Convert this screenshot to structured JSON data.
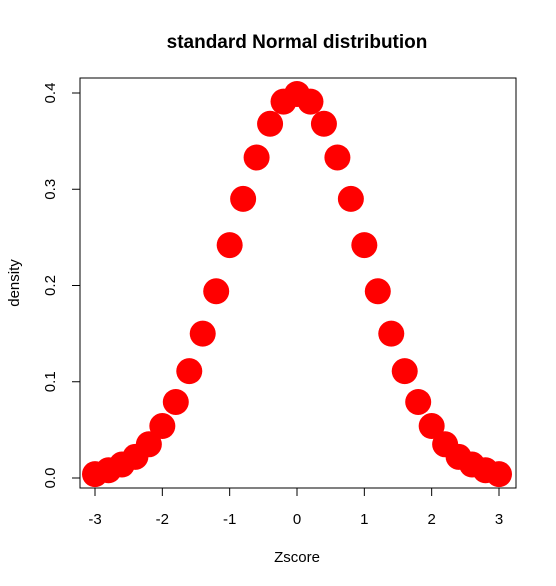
{
  "chart_data": {
    "type": "scatter",
    "title": "standard Normal distribution",
    "xlabel": "Zscore",
    "ylabel": "density",
    "xlim": [
      -3,
      3
    ],
    "ylim": [
      0,
      0.4
    ],
    "x_ticks": [
      -3,
      -2,
      -1,
      0,
      1,
      2,
      3
    ],
    "y_ticks": [
      0.0,
      0.1,
      0.2,
      0.3,
      0.4
    ],
    "x_tick_labels": [
      "-3",
      "-2",
      "-1",
      "0",
      "1",
      "2",
      "3"
    ],
    "y_tick_labels": [
      "0.0",
      "0.1",
      "0.2",
      "0.3",
      "0.4"
    ],
    "grid": false,
    "marker_color": "#ff0000",
    "series": [
      {
        "x": [
          -3.0,
          -2.8,
          -2.6,
          -2.4,
          -2.2,
          -2.0,
          -1.8,
          -1.6,
          -1.4,
          -1.2,
          -1.0,
          -0.8,
          -0.6,
          -0.4,
          -0.2,
          0.0,
          0.2,
          0.4,
          0.6,
          0.8,
          1.0,
          1.2,
          1.4,
          1.6,
          1.8,
          2.0,
          2.2,
          2.4,
          2.6,
          2.8,
          3.0
        ],
        "y": [
          0.004,
          0.008,
          0.014,
          0.022,
          0.035,
          0.054,
          0.079,
          0.111,
          0.15,
          0.194,
          0.242,
          0.29,
          0.333,
          0.368,
          0.391,
          0.399,
          0.391,
          0.368,
          0.333,
          0.29,
          0.242,
          0.194,
          0.15,
          0.111,
          0.079,
          0.054,
          0.035,
          0.022,
          0.014,
          0.008,
          0.004
        ]
      }
    ]
  }
}
